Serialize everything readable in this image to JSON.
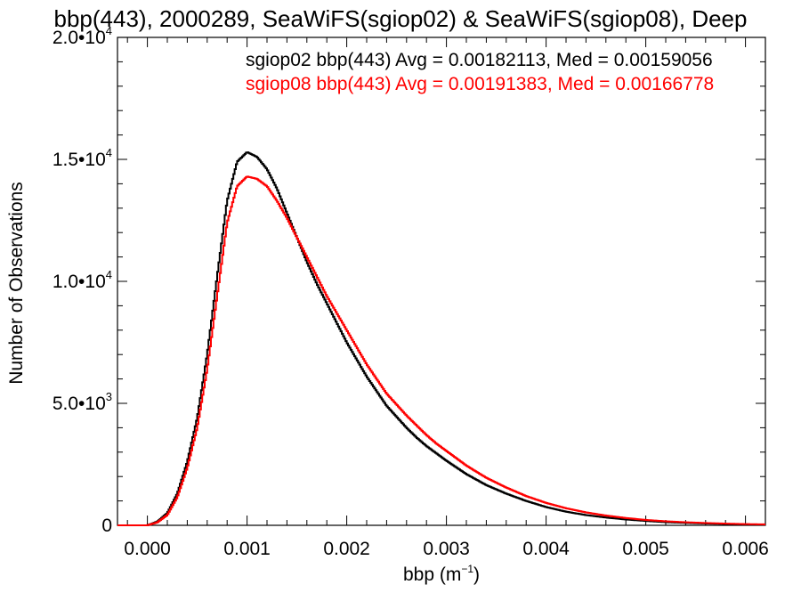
{
  "chart_data": {
    "type": "line",
    "title": "bbp(443), 2000289, SeaWiFS(sgiop02) & SeaWiFS(sgiop08), Deep",
    "xlabel": "bbp (m",
    "xlabel_sup": "−1",
    "xlabel_end": ")",
    "ylabel": "Number of Observations",
    "xlim": [
      -0.0003,
      0.0062
    ],
    "ylim": [
      0,
      20000
    ],
    "x_ticks": [
      {
        "value": 0.0,
        "label": "0.000"
      },
      {
        "value": 0.001,
        "label": "0.001"
      },
      {
        "value": 0.002,
        "label": "0.002"
      },
      {
        "value": 0.003,
        "label": "0.003"
      },
      {
        "value": 0.004,
        "label": "0.004"
      },
      {
        "value": 0.005,
        "label": "0.005"
      },
      {
        "value": 0.006,
        "label": "0.006"
      }
    ],
    "y_ticks": [
      {
        "value": 0,
        "label": "0",
        "exp": ""
      },
      {
        "value": 5000,
        "label": "5.0•10",
        "exp": "3"
      },
      {
        "value": 10000,
        "label": "1.0•10",
        "exp": "4"
      },
      {
        "value": 15000,
        "label": "1.5•10",
        "exp": "4"
      },
      {
        "value": 20000,
        "label": "2.0•10",
        "exp": "4"
      }
    ],
    "annotations": [
      {
        "text": "sgiop02 bbp(443) Avg = 0.00182113, Med = 0.00159056",
        "color": "#000000"
      },
      {
        "text": "sgiop08 bbp(443) Avg = 0.00191383, Med = 0.00166778",
        "color": "#ff0000"
      }
    ],
    "x": [
      -0.0003,
      0.0,
      0.0001,
      0.0002,
      0.0003,
      0.0004,
      0.0005,
      0.0006,
      0.0007,
      0.0008,
      0.0009,
      0.001,
      0.0011,
      0.0012,
      0.0013,
      0.0014,
      0.0015,
      0.0016,
      0.0017,
      0.0018,
      0.0019,
      0.002,
      0.0021,
      0.0022,
      0.0023,
      0.0024,
      0.0025,
      0.0026,
      0.0027,
      0.0028,
      0.0029,
      0.003,
      0.0032,
      0.0034,
      0.0036,
      0.0038,
      0.004,
      0.0042,
      0.0044,
      0.0046,
      0.0048,
      0.005,
      0.0052,
      0.0054,
      0.0056,
      0.0058,
      0.006,
      0.0062
    ],
    "series": [
      {
        "name": "sgiop02",
        "color": "#000000",
        "values": [
          0,
          0,
          150,
          500,
          1300,
          2600,
          4400,
          7000,
          10200,
          13300,
          14900,
          15300,
          15100,
          14600,
          13800,
          12800,
          11800,
          10800,
          9900,
          9100,
          8300,
          7500,
          6800,
          6100,
          5500,
          4900,
          4450,
          4000,
          3600,
          3250,
          2950,
          2650,
          2100,
          1650,
          1300,
          1000,
          750,
          560,
          420,
          320,
          240,
          180,
          130,
          100,
          75,
          55,
          40,
          30
        ]
      },
      {
        "name": "sgiop08",
        "color": "#ff0000",
        "values": [
          0,
          0,
          120,
          420,
          1150,
          2350,
          4000,
          6400,
          9400,
          12400,
          13900,
          14300,
          14200,
          13900,
          13300,
          12600,
          11800,
          11000,
          10200,
          9400,
          8700,
          8000,
          7300,
          6600,
          6000,
          5400,
          4950,
          4500,
          4100,
          3700,
          3350,
          3050,
          2450,
          1950,
          1550,
          1200,
          920,
          700,
          530,
          400,
          300,
          220,
          165,
          125,
          95,
          70,
          50,
          38
        ]
      }
    ]
  }
}
